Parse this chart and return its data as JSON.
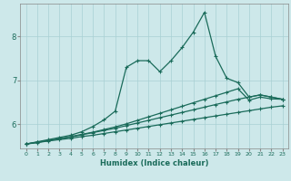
{
  "xlabel": "Humidex (Indice chaleur)",
  "background_color": "#cde8ea",
  "grid_color": "#a8d0d4",
  "line_color": "#1a6b5a",
  "xlim": [
    -0.5,
    23.5
  ],
  "ylim": [
    5.45,
    8.75
  ],
  "yticks": [
    6,
    7,
    8
  ],
  "xticks": [
    0,
    1,
    2,
    3,
    4,
    5,
    6,
    7,
    8,
    9,
    10,
    11,
    12,
    13,
    14,
    15,
    16,
    17,
    18,
    19,
    20,
    21,
    22,
    23
  ],
  "line1_x": [
    0,
    1,
    2,
    3,
    4,
    5,
    6,
    7,
    8,
    9,
    10,
    11,
    12,
    13,
    14,
    15,
    16,
    17,
    18,
    19,
    20,
    21,
    22,
    23
  ],
  "line1_y": [
    5.55,
    5.58,
    5.62,
    5.65,
    5.68,
    5.72,
    5.75,
    5.79,
    5.83,
    5.87,
    5.91,
    5.95,
    5.99,
    6.03,
    6.07,
    6.11,
    6.15,
    6.19,
    6.23,
    6.27,
    6.31,
    6.35,
    6.39,
    6.42
  ],
  "line2_x": [
    0,
    1,
    2,
    3,
    4,
    5,
    6,
    7,
    8,
    9,
    10,
    11,
    12,
    13,
    14,
    15,
    16,
    17,
    18,
    19,
    20,
    21,
    22,
    23
  ],
  "line2_y": [
    5.55,
    5.59,
    5.63,
    5.67,
    5.71,
    5.76,
    5.81,
    5.86,
    5.91,
    5.97,
    6.03,
    6.09,
    6.15,
    6.21,
    6.27,
    6.33,
    6.39,
    6.45,
    6.51,
    6.57,
    6.62,
    6.67,
    6.62,
    6.57
  ],
  "line3_x": [
    0,
    1,
    2,
    3,
    4,
    5,
    6,
    7,
    8,
    9,
    10,
    11,
    12,
    13,
    14,
    15,
    16,
    17,
    18,
    19,
    20,
    21,
    22,
    23
  ],
  "line3_y": [
    5.55,
    5.59,
    5.63,
    5.67,
    5.72,
    5.77,
    5.82,
    5.88,
    5.94,
    6.01,
    6.09,
    6.17,
    6.25,
    6.33,
    6.41,
    6.49,
    6.57,
    6.65,
    6.73,
    6.81,
    6.55,
    6.62,
    6.58,
    6.57
  ],
  "line4_x": [
    0,
    1,
    2,
    3,
    4,
    5,
    6,
    7,
    8,
    9,
    10,
    11,
    12,
    13,
    14,
    15,
    16,
    17,
    18,
    19,
    20,
    21,
    22,
    23
  ],
  "line4_y": [
    5.55,
    5.6,
    5.65,
    5.7,
    5.75,
    5.83,
    5.95,
    6.1,
    6.3,
    7.3,
    7.45,
    7.45,
    7.2,
    7.45,
    7.75,
    8.1,
    8.55,
    7.55,
    7.05,
    6.95,
    6.62,
    6.67,
    6.62,
    6.57
  ]
}
